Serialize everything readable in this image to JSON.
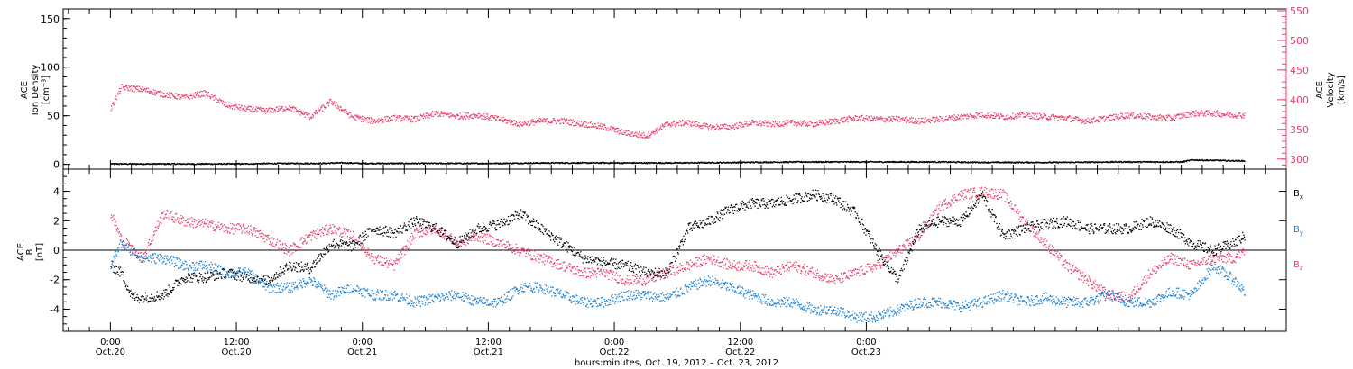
{
  "chart_data": [
    {
      "type": "scatter",
      "panel": "top",
      "ylabel": "ACE Ion Density [cm⁻³]",
      "ylabel_lines": [
        "ACE",
        "Ion Density",
        "[cm⁻³]"
      ],
      "ylim": [
        -5,
        160
      ],
      "yticks": [
        0,
        50,
        100,
        150
      ],
      "y2label": "ACE Velocity [km/s]",
      "y2label_lines": [
        "ACE",
        "Velocity",
        "[km/s]"
      ],
      "y2lim": [
        283,
        553
      ],
      "y2ticks": [
        300,
        350,
        400,
        450,
        500,
        550
      ],
      "series": [
        {
          "name": "Ion Density",
          "axis": "left",
          "color": "#000000",
          "x_hours": [
            0,
            4,
            8,
            12,
            16,
            20,
            21.5,
            22.5,
            24,
            30,
            36,
            42,
            48,
            54,
            60,
            66,
            72,
            78,
            84,
            90,
            96,
            102,
            103,
            108
          ],
          "values": [
            1,
            1,
            1,
            1,
            1.5,
            1.5,
            2,
            2,
            1.5,
            1.5,
            1.5,
            2,
            2,
            2,
            2.5,
            3,
            3,
            3,
            2.5,
            2.5,
            3,
            3,
            5,
            4
          ]
        },
        {
          "name": "Velocity",
          "axis": "right",
          "color": "#e8406b",
          "x_hours": [
            0,
            1,
            3,
            5,
            7,
            9,
            11,
            13,
            15,
            17,
            19,
            21,
            23,
            25,
            27,
            29,
            31,
            33,
            35,
            37,
            39,
            41,
            43,
            45,
            47,
            49,
            51,
            53,
            55,
            57,
            59,
            61,
            63,
            65,
            67,
            69,
            71,
            73,
            75,
            77,
            79,
            81,
            83,
            85,
            87,
            89,
            91,
            93,
            95,
            97,
            99,
            101,
            103,
            105,
            107,
            108
          ],
          "values": [
            385,
            422,
            418,
            410,
            405,
            412,
            392,
            385,
            382,
            388,
            372,
            398,
            372,
            365,
            370,
            368,
            378,
            373,
            375,
            368,
            360,
            365,
            365,
            360,
            355,
            345,
            340,
            360,
            362,
            355,
            355,
            362,
            360,
            362,
            360,
            365,
            370,
            368,
            368,
            365,
            368,
            372,
            376,
            372,
            375,
            372,
            370,
            365,
            370,
            375,
            372,
            370,
            378,
            378,
            375,
            375
          ]
        }
      ]
    },
    {
      "type": "scatter",
      "panel": "bottom",
      "ylabel": "ACE B [nT]",
      "ylabel_lines": [
        "ACE",
        "B",
        "[nT]"
      ],
      "ylim": [
        -5.5,
        5.5
      ],
      "yticks": [
        -4,
        -2,
        0,
        2,
        4
      ],
      "series": [
        {
          "name": "Bx",
          "name_text": "B",
          "name_sub": "x",
          "color": "#000000",
          "x_hours": [
            0,
            1,
            2,
            3,
            5,
            7,
            9,
            11,
            13,
            15,
            17,
            19,
            21,
            23,
            25,
            27,
            29,
            31,
            33,
            35,
            37,
            39,
            41,
            43,
            45,
            47,
            49,
            51,
            53,
            55,
            57,
            59,
            61,
            63,
            65,
            67,
            69,
            71,
            73,
            75,
            77,
            79,
            81,
            83,
            85,
            87,
            89,
            91,
            93,
            95,
            97,
            99,
            101,
            103,
            105,
            107,
            108
          ],
          "values": [
            -1,
            -1.5,
            -3.1,
            -3.2,
            -3,
            -1.8,
            -1.8,
            -1.5,
            -1.8,
            -2,
            -1,
            -1.2,
            0.5,
            0.3,
            1.5,
            1.2,
            2,
            1.5,
            0.5,
            1.5,
            1.8,
            2.5,
            1.5,
            0.5,
            -0.5,
            -0.8,
            -1,
            -1.5,
            -1.5,
            1.5,
            2,
            2.8,
            3.2,
            3.2,
            3.5,
            3.8,
            3.5,
            2.5,
            0,
            -2,
            1.5,
            2,
            2,
            3.8,
            1,
            1.5,
            1.8,
            2,
            1.5,
            1.5,
            1.5,
            2,
            1.5,
            0.5,
            0,
            0.5,
            1
          ]
        },
        {
          "name": "By",
          "name_text": "B",
          "name_sub": "y",
          "color": "#1a7fd0",
          "x_hours": [
            0,
            1,
            3,
            5,
            7,
            9,
            11,
            13,
            15,
            17,
            19,
            21,
            23,
            25,
            27,
            29,
            31,
            33,
            35,
            37,
            39,
            41,
            43,
            45,
            47,
            49,
            51,
            53,
            55,
            57,
            59,
            61,
            63,
            65,
            67,
            69,
            71,
            73,
            75,
            77,
            79,
            81,
            83,
            85,
            87,
            89,
            91,
            93,
            95,
            97,
            99,
            101,
            103,
            105,
            107,
            108
          ],
          "values": [
            -1,
            0.5,
            -0.5,
            -0.5,
            -1,
            -1,
            -1.5,
            -1.5,
            -2.5,
            -2.5,
            -2,
            -3,
            -2.5,
            -3,
            -3,
            -3.5,
            -3.2,
            -3,
            -3.5,
            -3.5,
            -2.5,
            -2.5,
            -3,
            -3.5,
            -3.5,
            -3,
            -3,
            -3.2,
            -2.5,
            -2,
            -2.5,
            -3,
            -3.5,
            -3.5,
            -4,
            -4,
            -4.5,
            -4.5,
            -4,
            -3.5,
            -3.5,
            -3.8,
            -3.5,
            -3,
            -3.5,
            -3.2,
            -3.5,
            -3.5,
            -3,
            -3.5,
            -3.5,
            -2.8,
            -3,
            -1,
            -2,
            -2.8
          ]
        },
        {
          "name": "Bz",
          "name_text": "B",
          "name_sub": "z",
          "color": "#e8406b",
          "x_hours": [
            0,
            1,
            3,
            5,
            7,
            9,
            11,
            13,
            15,
            17,
            19,
            21,
            23,
            25,
            27,
            29,
            31,
            33,
            35,
            37,
            39,
            41,
            43,
            45,
            47,
            49,
            51,
            53,
            55,
            57,
            59,
            61,
            63,
            65,
            67,
            69,
            71,
            73,
            75,
            77,
            79,
            81,
            83,
            85,
            87,
            89,
            91,
            93,
            95,
            97,
            99,
            101,
            103,
            105,
            107,
            108
          ],
          "values": [
            2.5,
            0.8,
            -0.5,
            2.5,
            2,
            1.8,
            1.5,
            1.5,
            0.8,
            0,
            1,
            1.5,
            1,
            -0.5,
            -1,
            1.2,
            1.5,
            0.5,
            1,
            0.5,
            0,
            -0.5,
            -1,
            -1.5,
            -1.5,
            -2,
            -2,
            -1.5,
            -1,
            -0.5,
            -1,
            -1,
            -1.5,
            -1,
            -1.5,
            -2,
            -1.5,
            -1,
            0,
            1,
            3,
            3.8,
            4,
            3.8,
            2,
            0.5,
            -1,
            -2,
            -3,
            -3.2,
            -1.5,
            -0.5,
            -1,
            -0.5,
            -0.5,
            0
          ]
        }
      ]
    }
  ],
  "x_axis": {
    "range_hours": [
      -4.5,
      112
    ],
    "ticks": [
      {
        "hour": 0,
        "time": "0:00",
        "date": "Oct.20"
      },
      {
        "hour": 12,
        "time": "12:00",
        "date": "Oct.20"
      },
      {
        "hour": 24,
        "time": "0:00",
        "date": "Oct.21"
      },
      {
        "hour": 36,
        "time": "12:00",
        "date": "Oct.21"
      },
      {
        "hour": 48,
        "time": "0:00",
        "date": "Oct.22"
      },
      {
        "hour": 60,
        "time": "12:00",
        "date": "Oct.22"
      },
      {
        "hour": 72,
        "time": "0:00",
        "date": "Oct.23"
      }
    ],
    "title": "hours:minutes, Oct. 19, 2012 – Oct. 23, 2012"
  }
}
